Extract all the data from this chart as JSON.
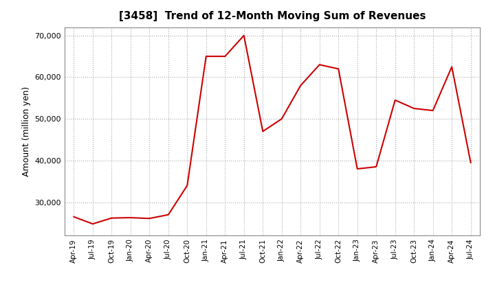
{
  "title": "[3458]  Trend of 12-Month Moving Sum of Revenues",
  "ylabel": "Amount (million yen)",
  "ylim": [
    22000,
    72000
  ],
  "yticks": [
    30000,
    40000,
    50000,
    60000,
    70000
  ],
  "line_color": "#cc0000",
  "background_color": "#ffffff",
  "grid_color": "#aaaaaa",
  "x_labels": [
    "Apr-19",
    "Jul-19",
    "Oct-19",
    "Jan-20",
    "Apr-20",
    "Jul-20",
    "Oct-20",
    "Jan-21",
    "Apr-21",
    "Jul-21",
    "Oct-21",
    "Jan-22",
    "Apr-22",
    "Jul-22",
    "Oct-22",
    "Jan-23",
    "Apr-23",
    "Jul-23",
    "Oct-23",
    "Jan-24",
    "Apr-24",
    "Jul-24"
  ],
  "values": [
    26500,
    24800,
    26200,
    26300,
    26100,
    27000,
    34000,
    65000,
    65000,
    70000,
    47000,
    50000,
    58000,
    63000,
    62000,
    38000,
    38500,
    54500,
    52500,
    52000,
    62500,
    39500
  ]
}
